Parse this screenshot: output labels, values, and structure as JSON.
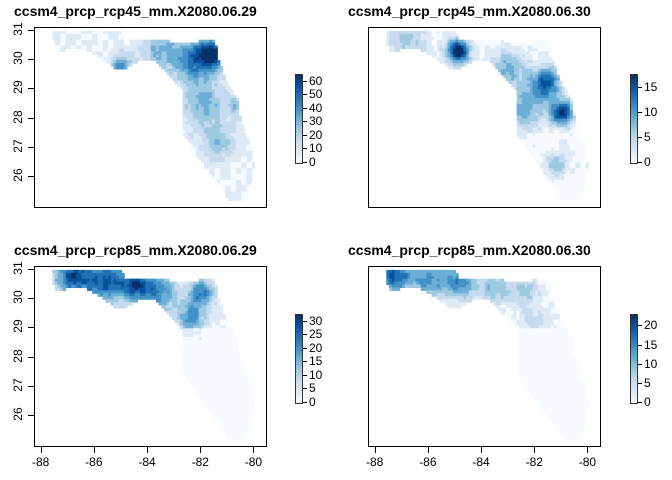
{
  "panels": [
    {
      "title": "ccsm4_prcp_rcp45_mm.X2080.06.29",
      "legend": {
        "labels": [
          "0",
          "10",
          "20",
          "30",
          "40",
          "50",
          "60"
        ],
        "max": 65
      }
    },
    {
      "title": "ccsm4_prcp_rcp45_mm.X2080.06.30",
      "legend": {
        "labels": [
          "0",
          "5",
          "10",
          "15"
        ],
        "max": 17.5
      }
    },
    {
      "title": "ccsm4_prcp_rcp85_mm.X2080.06.29",
      "legend": {
        "labels": [
          "0",
          "5",
          "10",
          "15",
          "20",
          "25",
          "30"
        ],
        "max": 32.5
      }
    },
    {
      "title": "ccsm4_prcp_rcp85_mm.X2080.06.30",
      "legend": {
        "labels": [
          "0",
          "5",
          "10",
          "15",
          "20"
        ],
        "max": 23
      }
    }
  ],
  "y_axis_labels": [
    "26",
    "27",
    "28",
    "29",
    "30",
    "31"
  ],
  "x_axis_labels": [
    "-88",
    "-86",
    "-84",
    "-82",
    "-80"
  ],
  "colors": {
    "low": "#f7fbff",
    "mid": "#6baed6",
    "high": "#08306b"
  }
}
